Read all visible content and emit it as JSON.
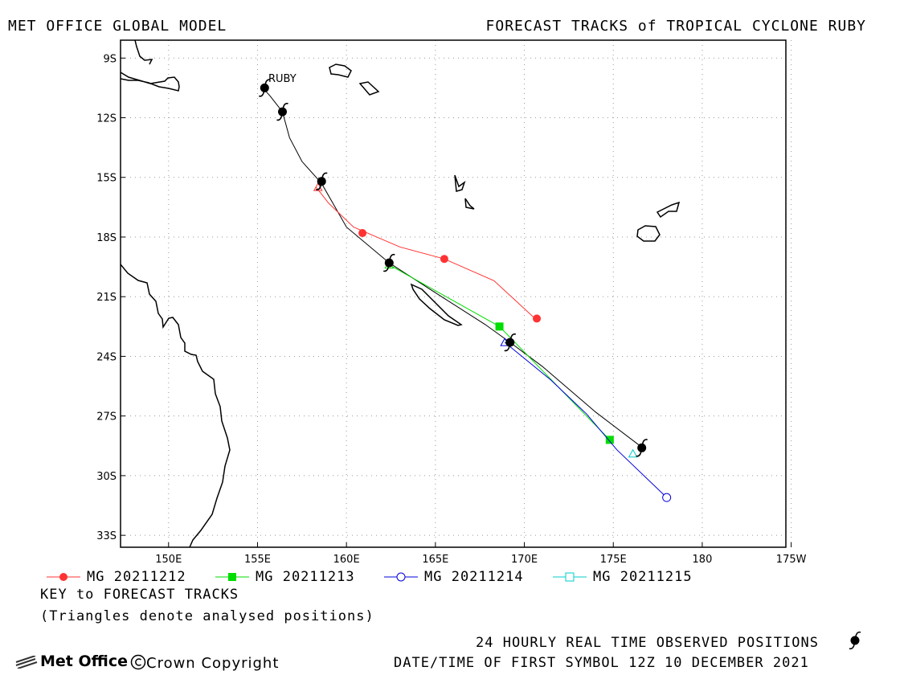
{
  "header": {
    "left": "MET OFFICE GLOBAL MODEL",
    "right": "FORECAST TRACKS of TROPICAL CYCLONE RUBY"
  },
  "map": {
    "lon_range": [
      147.3,
      184.7
    ],
    "lat_range": [
      -8.1,
      -33.6
    ],
    "lon_ticks": [
      {
        "lon": 150,
        "label": "150E"
      },
      {
        "lon": 155,
        "label": "155E"
      },
      {
        "lon": 160,
        "label": "160E"
      },
      {
        "lon": 165,
        "label": "165E"
      },
      {
        "lon": 170,
        "label": "170E"
      },
      {
        "lon": 175,
        "label": "175E"
      },
      {
        "lon": 180,
        "label": "180"
      },
      {
        "lon": 185,
        "label": "175W"
      }
    ],
    "lat_ticks": [
      {
        "lat": -9,
        "label": "9S"
      },
      {
        "lat": -12,
        "label": "12S"
      },
      {
        "lat": -15,
        "label": "15S"
      },
      {
        "lat": -18,
        "label": "18S"
      },
      {
        "lat": -21,
        "label": "21S"
      },
      {
        "lat": -24,
        "label": "24S"
      },
      {
        "lat": -27,
        "label": "27S"
      },
      {
        "lat": -30,
        "label": "30S"
      },
      {
        "lat": -33,
        "label": "33S"
      }
    ],
    "storm_label": "RUBY",
    "colors": {
      "grid": "#999999",
      "coast": "#000000",
      "observed": "#000000"
    }
  },
  "chart_data": {
    "type": "map-tracks",
    "title": "FORECAST TRACKS of TROPICAL CYCLONE RUBY",
    "observed_track": [
      [
        155.3,
        -10.5
      ],
      [
        155.7,
        -10.9
      ],
      [
        156.4,
        -11.7
      ],
      [
        156.8,
        -13.0
      ],
      [
        157.5,
        -14.2
      ],
      [
        158.6,
        -15.3
      ],
      [
        160.0,
        -17.5
      ],
      [
        162.4,
        -19.3
      ],
      [
        165.0,
        -20.8
      ],
      [
        167.8,
        -22.4
      ],
      [
        169.2,
        -23.3
      ],
      [
        171.0,
        -24.5
      ],
      [
        174.0,
        -26.8
      ],
      [
        176.5,
        -28.5
      ]
    ],
    "observed_symbols": [
      [
        155.4,
        -10.5
      ],
      [
        156.4,
        -11.7
      ],
      [
        158.6,
        -15.2
      ],
      [
        162.4,
        -19.3
      ],
      [
        169.2,
        -23.3
      ],
      [
        176.6,
        -28.6
      ]
    ],
    "series": [
      {
        "name": "MG 20211212",
        "color": "#ff3333",
        "marker": "filled-circle",
        "track": [
          [
            158.3,
            -15.5
          ],
          [
            159.0,
            -16.3
          ],
          [
            160.4,
            -17.5
          ],
          [
            163.0,
            -18.5
          ],
          [
            165.5,
            -19.1
          ],
          [
            168.3,
            -20.2
          ],
          [
            170.6,
            -22.1
          ]
        ],
        "points": [
          [
            160.9,
            -17.8
          ],
          [
            165.5,
            -19.1
          ],
          [
            170.7,
            -22.1
          ]
        ],
        "analysed": [
          158.4,
          -15.5
        ]
      },
      {
        "name": "MG 20211213",
        "color": "#00dd00",
        "marker": "filled-square",
        "track": [
          [
            162.4,
            -19.4
          ],
          [
            168.6,
            -22.5
          ],
          [
            174.8,
            -28.2
          ]
        ],
        "points": [
          [
            168.6,
            -22.5
          ],
          [
            174.8,
            -28.2
          ]
        ],
        "analysed": [
          162.4,
          -19.4
        ]
      },
      {
        "name": "MG 20211214",
        "color": "#0000dd",
        "marker": "open-circle",
        "track": [
          [
            168.9,
            -23.3
          ],
          [
            171.5,
            -25.2
          ],
          [
            173.5,
            -26.9
          ],
          [
            175.2,
            -28.7
          ],
          [
            178.0,
            -31.1
          ]
        ],
        "points": [
          [
            178.0,
            -31.1
          ]
        ],
        "analysed": [
          168.9,
          -23.3
        ]
      },
      {
        "name": "MG 20211215",
        "color": "#00cccc",
        "marker": "open-square",
        "track": [
          [
            176.1,
            -28.9
          ]
        ],
        "points": [],
        "analysed": [
          176.1,
          -28.9
        ]
      }
    ]
  },
  "footer": {
    "key_title": "KEY to FORECAST TRACKS",
    "key_note": "(Triangles denote analysed positions)",
    "observed_label": "24 HOURLY REAL TIME OBSERVED POSITIONS",
    "datetime": "DATE/TIME OF FIRST SYMBOL 12Z 10 DECEMBER 2021",
    "logo": "Met Office",
    "copyright": "Crown Copyright"
  }
}
